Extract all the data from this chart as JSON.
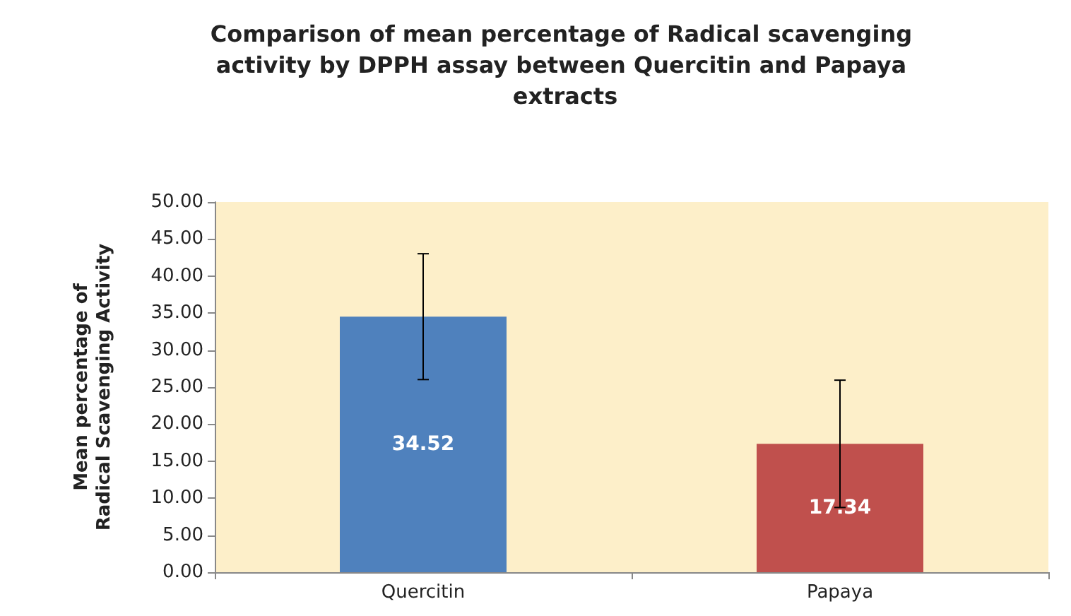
{
  "chart_data": {
    "type": "bar",
    "title": "Comparison of mean percentage of Radical scavenging activity by DPPH assay between Quercitin and Papaya extracts",
    "ylabel": "Mean percentage of\nRadical Scavenging Activity",
    "categories": [
      "Quercitin",
      "Papaya"
    ],
    "values": [
      34.52,
      17.34
    ],
    "colors": [
      "#4f81bd",
      "#c0504d"
    ],
    "errors": [
      8.5,
      8.6
    ],
    "data_labels": true,
    "ylim": [
      0,
      50
    ],
    "yticks": [
      {
        "value": 0,
        "label": "0.00"
      },
      {
        "value": 5,
        "label": "5.00"
      },
      {
        "value": 10,
        "label": "10.00"
      },
      {
        "value": 15,
        "label": "15.00"
      },
      {
        "value": 20,
        "label": "20.00"
      },
      {
        "value": 25,
        "label": "25.00"
      },
      {
        "value": 30,
        "label": "30.00"
      },
      {
        "value": 35,
        "label": "35.00"
      },
      {
        "value": 40,
        "label": "40.00"
      },
      {
        "value": 45,
        "label": "45.00"
      },
      {
        "value": 50,
        "label": "50.00"
      }
    ],
    "grid": false
  }
}
